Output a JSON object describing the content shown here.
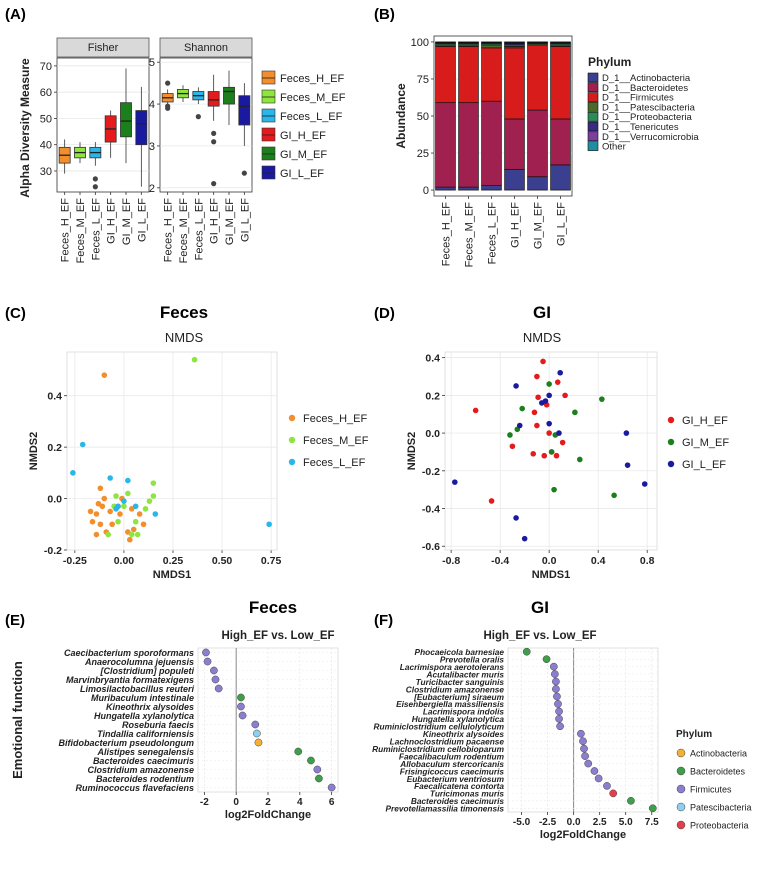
{
  "chart_data": [
    {
      "panel": "(A)",
      "type": "box",
      "ylabel": "Alpha Diversity Measure",
      "categories": [
        "Feces_H_EF",
        "Feces_M_EF",
        "Feces_L_EF",
        "GI_H_EF",
        "GI_M_EF",
        "GI_L_EF"
      ],
      "colors": [
        "#F28E2B",
        "#8EE53F",
        "#29B6E8",
        "#E41A1C",
        "#1B7F1B",
        "#1A1AA0"
      ],
      "facets": [
        {
          "title": "Fisher",
          "ylim": [
            22,
            73
          ],
          "yticks": [
            30,
            40,
            50,
            60,
            70
          ],
          "boxes": [
            {
              "min": 29,
              "q1": 33,
              "median": 36,
              "q3": 39,
              "max": 42,
              "outliers": []
            },
            {
              "min": 33,
              "q1": 35,
              "median": 37,
              "q3": 39,
              "max": 41,
              "outliers": []
            },
            {
              "min": 32,
              "q1": 35,
              "median": 37,
              "q3": 39,
              "max": 41,
              "outliers": [
                27,
                24
              ]
            },
            {
              "min": 35,
              "q1": 41,
              "median": 46,
              "q3": 51,
              "max": 53,
              "outliers": []
            },
            {
              "min": 33,
              "q1": 43,
              "median": 49,
              "q3": 56,
              "max": 69,
              "outliers": []
            },
            {
              "min": 24,
              "q1": 40,
              "median": 48,
              "q3": 53,
              "max": 62,
              "outliers": []
            }
          ]
        },
        {
          "title": "Shannon",
          "ylim": [
            1.9,
            5.1
          ],
          "yticks": [
            2,
            3,
            4,
            5
          ],
          "boxes": [
            {
              "min": 3.95,
              "q1": 4.05,
              "median": 4.15,
              "q3": 4.25,
              "max": 4.35,
              "outliers": [
                4.5,
                3.95,
                3.9
              ]
            },
            {
              "min": 4.05,
              "q1": 4.15,
              "median": 4.25,
              "q3": 4.35,
              "max": 4.45,
              "outliers": []
            },
            {
              "min": 4.0,
              "q1": 4.1,
              "median": 4.2,
              "q3": 4.3,
              "max": 4.4,
              "outliers": [
                3.7
              ]
            },
            {
              "min": 3.6,
              "q1": 3.95,
              "median": 4.1,
              "q3": 4.3,
              "max": 4.7,
              "outliers": [
                3.3,
                3.1,
                2.1
              ]
            },
            {
              "min": 3.5,
              "q1": 4.0,
              "median": 4.3,
              "q3": 4.4,
              "max": 4.8,
              "outliers": []
            },
            {
              "min": 3.0,
              "q1": 3.5,
              "median": 3.95,
              "q3": 4.2,
              "max": 4.5,
              "outliers": [
                2.35
              ]
            }
          ]
        }
      ]
    },
    {
      "panel": "(B)",
      "type": "stacked-bar",
      "ylabel": "Abundance",
      "ylim": [
        0,
        100
      ],
      "yticks": [
        0,
        25,
        50,
        75,
        100
      ],
      "categories": [
        "Feces_H_EF",
        "Feces_M_EF",
        "Feces_L_EF",
        "GI_H_EF",
        "GI_M_EF",
        "GI_L_EF"
      ],
      "legend_title": "Phylum",
      "series": [
        {
          "name": "D_1__Actinobacteria",
          "color": "#3A3F8F",
          "values": [
            2,
            2,
            3,
            14,
            9,
            17
          ]
        },
        {
          "name": "D_1__Bacteroidetes",
          "color": "#A02050",
          "values": [
            57,
            57,
            57,
            34,
            45,
            31
          ]
        },
        {
          "name": "D_1__Firmicutes",
          "color": "#D81B1B",
          "values": [
            38,
            38,
            36,
            48,
            44,
            49
          ]
        },
        {
          "name": "D_1__Patescibacteria",
          "color": "#4A6A2A",
          "values": [
            1,
            1,
            2,
            1,
            1,
            1
          ]
        },
        {
          "name": "D_1__Proteobacteria",
          "color": "#2E8B57",
          "values": [
            1,
            1,
            1,
            1,
            0.5,
            1
          ]
        },
        {
          "name": "D_1__Tenericutes",
          "color": "#3A2A80",
          "values": [
            0.5,
            0.5,
            0.5,
            1,
            0.3,
            0.5
          ]
        },
        {
          "name": "D_1__Verrucomicrobia",
          "color": "#7B3FA0",
          "values": [
            0.3,
            0.3,
            0.3,
            0.5,
            0.1,
            0.3
          ]
        },
        {
          "name": "Other",
          "color": "#1E8FA0",
          "values": [
            0.2,
            0.2,
            0.2,
            0.5,
            0.1,
            0.2
          ]
        }
      ]
    },
    {
      "panel": "(C)",
      "type": "scatter",
      "title": "Feces",
      "subtitle": "NMDS",
      "xlabel": "NMDS1",
      "ylabel": "NMDS2",
      "xlim": [
        -0.29,
        0.78
      ],
      "ylim": [
        -0.2,
        0.57
      ],
      "xticks": [
        -0.25,
        0,
        0.25,
        0.5,
        0.75
      ],
      "yticks": [
        -0.2,
        0.0,
        0.2,
        0.4
      ],
      "series": [
        {
          "name": "Feces_H_EF",
          "color": "#F28E2B",
          "points": [
            [
              -0.1,
              0.48
            ],
            [
              -0.12,
              0.04
            ],
            [
              -0.17,
              -0.05
            ],
            [
              -0.14,
              -0.06
            ],
            [
              -0.07,
              -0.05
            ],
            [
              -0.1,
              0.0
            ],
            [
              -0.02,
              -0.06
            ],
            [
              -0.13,
              -0.02
            ],
            [
              -0.16,
              -0.09
            ],
            [
              -0.12,
              -0.1
            ],
            [
              -0.01,
              0.0
            ],
            [
              0.04,
              -0.04
            ],
            [
              0.1,
              -0.1
            ],
            [
              -0.03,
              -0.03
            ],
            [
              0.02,
              -0.13
            ],
            [
              -0.09,
              -0.13
            ],
            [
              0.03,
              -0.16
            ],
            [
              -0.06,
              -0.1
            ],
            [
              -0.14,
              -0.14
            ],
            [
              0.08,
              -0.06
            ],
            [
              -0.11,
              -0.03
            ],
            [
              0.05,
              -0.12
            ]
          ]
        },
        {
          "name": "Feces_M_EF",
          "color": "#8EE53F",
          "points": [
            [
              0.36,
              0.54
            ],
            [
              0.15,
              0.06
            ],
            [
              0.15,
              0.01
            ],
            [
              0.13,
              -0.01
            ],
            [
              0.0,
              -0.03
            ],
            [
              0.06,
              -0.09
            ],
            [
              -0.03,
              -0.09
            ],
            [
              0.04,
              -0.14
            ],
            [
              0.07,
              -0.14
            ],
            [
              -0.08,
              -0.14
            ],
            [
              -0.04,
              0.01
            ],
            [
              0.11,
              -0.04
            ],
            [
              -0.05,
              -0.03
            ],
            [
              0.02,
              0.02
            ]
          ]
        },
        {
          "name": "Feces_L_EF",
          "color": "#29B6E8",
          "points": [
            [
              -0.21,
              0.21
            ],
            [
              -0.26,
              0.1
            ],
            [
              0.74,
              -0.1
            ],
            [
              -0.07,
              0.08
            ],
            [
              0.02,
              0.07
            ],
            [
              -0.04,
              -0.04
            ],
            [
              -0.03,
              -0.03
            ],
            [
              0.06,
              -0.03
            ],
            [
              0.16,
              -0.06
            ],
            [
              0.0,
              -0.01
            ]
          ]
        }
      ]
    },
    {
      "panel": "(D)",
      "type": "scatter",
      "title": "GI",
      "subtitle": "NMDS",
      "xlabel": "NMDS1",
      "ylabel": "NMDS2",
      "xlim": [
        -0.85,
        0.88
      ],
      "ylim": [
        -0.62,
        0.43
      ],
      "xticks": [
        -0.8,
        -0.4,
        0.0,
        0.4,
        0.8
      ],
      "yticks": [
        -0.6,
        -0.4,
        -0.2,
        0.0,
        0.2,
        0.4
      ],
      "series": [
        {
          "name": "GI_H_EF",
          "color": "#E41A1C",
          "points": [
            [
              -0.05,
              0.38
            ],
            [
              -0.1,
              0.3
            ],
            [
              0.07,
              0.27
            ],
            [
              0.13,
              0.2
            ],
            [
              -0.09,
              0.19
            ],
            [
              -0.02,
              0.15
            ],
            [
              -0.6,
              0.12
            ],
            [
              -0.12,
              0.11
            ],
            [
              -0.1,
              0.04
            ],
            [
              0.0,
              0.0
            ],
            [
              -0.3,
              -0.07
            ],
            [
              0.02,
              -0.1
            ],
            [
              -0.13,
              -0.11
            ],
            [
              -0.04,
              -0.12
            ],
            [
              0.06,
              -0.12
            ],
            [
              -0.47,
              -0.36
            ],
            [
              0.11,
              -0.05
            ]
          ]
        },
        {
          "name": "GI_M_EF",
          "color": "#1B7F1B",
          "points": [
            [
              0.0,
              0.26
            ],
            [
              0.43,
              0.18
            ],
            [
              -0.22,
              0.13
            ],
            [
              0.21,
              0.11
            ],
            [
              -0.26,
              0.02
            ],
            [
              -0.32,
              -0.01
            ],
            [
              0.05,
              -0.01
            ],
            [
              0.02,
              -0.1
            ],
            [
              0.25,
              -0.14
            ],
            [
              0.04,
              -0.3
            ],
            [
              0.53,
              -0.33
            ]
          ]
        },
        {
          "name": "GI_L_EF",
          "color": "#1A1AA0",
          "points": [
            [
              0.09,
              0.32
            ],
            [
              -0.27,
              0.25
            ],
            [
              0.0,
              0.2
            ],
            [
              -0.03,
              0.17
            ],
            [
              -0.06,
              0.16
            ],
            [
              0.0,
              0.05
            ],
            [
              0.08,
              0.0
            ],
            [
              -0.24,
              0.04
            ],
            [
              0.63,
              0.0
            ],
            [
              0.64,
              -0.17
            ],
            [
              0.78,
              -0.27
            ],
            [
              -0.77,
              -0.26
            ],
            [
              -0.27,
              -0.45
            ],
            [
              -0.2,
              -0.56
            ]
          ]
        }
      ]
    },
    {
      "panel": "(E)",
      "type": "dot",
      "title": "Feces",
      "subtitle": "High_EF vs. Low_EF",
      "xlabel": "log2FoldChange",
      "ylabel": "Emotional function",
      "xlim": [
        -2.4,
        6.4
      ],
      "xticks": [
        -2,
        0,
        2,
        4,
        6
      ],
      "items": [
        {
          "name": "Caecibacterium sporoformans",
          "value": -1.9,
          "phylum": "Firmicutes"
        },
        {
          "name": "Anaerocolumna jejuensis",
          "value": -1.8,
          "phylum": "Firmicutes"
        },
        {
          "name": "[Clostridium] populeti",
          "value": -1.4,
          "phylum": "Firmicutes"
        },
        {
          "name": "Marvinbryantia formatexigens",
          "value": -1.3,
          "phylum": "Firmicutes"
        },
        {
          "name": "Limosilactobacillus reuteri",
          "value": -1.1,
          "phylum": "Firmicutes"
        },
        {
          "name": "Muribaculum intestinale",
          "value": 0.3,
          "phylum": "Bacteroidetes"
        },
        {
          "name": "Kineothrix alysoides",
          "value": 0.3,
          "phylum": "Firmicutes"
        },
        {
          "name": "Hungatella xylanolytica",
          "value": 0.4,
          "phylum": "Firmicutes"
        },
        {
          "name": "Roseburia faecis",
          "value": 1.2,
          "phylum": "Firmicutes"
        },
        {
          "name": "Tindallia californiensis",
          "value": 1.3,
          "phylum": "Patescibacteria"
        },
        {
          "name": "Bifidobacterium pseudolongum",
          "value": 1.4,
          "phylum": "Actinobacteria"
        },
        {
          "name": "Alistipes senegalensis",
          "value": 3.9,
          "phylum": "Bacteroidetes"
        },
        {
          "name": "Bacteroides caecimuris",
          "value": 4.7,
          "phylum": "Bacteroidetes"
        },
        {
          "name": "Clostridium amazonense",
          "value": 5.1,
          "phylum": "Firmicutes"
        },
        {
          "name": "Bacteroides rodentium",
          "value": 5.2,
          "phylum": "Bacteroidetes"
        },
        {
          "name": "Ruminococcus flavefaciens",
          "value": 6.0,
          "phylum": "Firmicutes"
        }
      ]
    },
    {
      "panel": "(F)",
      "type": "dot",
      "title": "GI",
      "subtitle": "High_EF vs. Low_EF",
      "xlabel": "log2FoldChange",
      "xlim": [
        -6.3,
        8.1
      ],
      "xticks": [
        -5.0,
        -2.5,
        0.0,
        2.5,
        5.0,
        7.5
      ],
      "legend_title": "Phylum",
      "items": [
        {
          "name": "Phocaeicola barnesiae",
          "value": -4.5,
          "phylum": "Bacteroidetes"
        },
        {
          "name": "Prevotella oralis",
          "value": -2.6,
          "phylum": "Bacteroidetes"
        },
        {
          "name": "Lacrimispora aerotolerans",
          "value": -1.9,
          "phylum": "Firmicutes"
        },
        {
          "name": "Acutalibacter muris",
          "value": -1.8,
          "phylum": "Firmicutes"
        },
        {
          "name": "Turicibacter sanguinis",
          "value": -1.7,
          "phylum": "Firmicutes"
        },
        {
          "name": "Clostridium amazonense",
          "value": -1.7,
          "phylum": "Firmicutes"
        },
        {
          "name": "[Eubacterium] siraeum",
          "value": -1.6,
          "phylum": "Firmicutes"
        },
        {
          "name": "Eisenbergiella massiliensis",
          "value": -1.5,
          "phylum": "Firmicutes"
        },
        {
          "name": "Lacrimispora indolis",
          "value": -1.4,
          "phylum": "Firmicutes"
        },
        {
          "name": "Hungatella xylanolytica",
          "value": -1.4,
          "phylum": "Firmicutes"
        },
        {
          "name": "Ruminiclostridium cellulolyticum",
          "value": -1.3,
          "phylum": "Firmicutes"
        },
        {
          "name": "Kineothrix alysoides",
          "value": 0.7,
          "phylum": "Firmicutes"
        },
        {
          "name": "Lachnoclostridium pacaense",
          "value": 0.9,
          "phylum": "Firmicutes"
        },
        {
          "name": "Ruminiclostridium cellobioparum",
          "value": 1.0,
          "phylum": "Firmicutes"
        },
        {
          "name": "Faecalibaculum rodentium",
          "value": 1.1,
          "phylum": "Firmicutes"
        },
        {
          "name": "Allobaculum stercoricanis",
          "value": 1.4,
          "phylum": "Firmicutes"
        },
        {
          "name": "Frisingicoccus caecimuris",
          "value": 2.0,
          "phylum": "Firmicutes"
        },
        {
          "name": "Eubacterium ventriosum",
          "value": 2.4,
          "phylum": "Firmicutes"
        },
        {
          "name": "Faecalicatena contorta",
          "value": 3.2,
          "phylum": "Firmicutes"
        },
        {
          "name": "Turicimonas muris",
          "value": 3.8,
          "phylum": "Proteobacteria"
        },
        {
          "name": "Bacteroides caecimuris",
          "value": 5.5,
          "phylum": "Bacteroidetes"
        },
        {
          "name": "Prevotellamassilia timonensis",
          "value": 7.6,
          "phylum": "Bacteroidetes"
        }
      ]
    }
  ],
  "phylum_colors": {
    "Actinobacteria": "#F2B134",
    "Bacteroidetes": "#3E9E4A",
    "Firmicutes": "#8A7ECF",
    "Patescibacteria": "#8ECFEF",
    "Proteobacteria": "#E0404A"
  },
  "phylum_legend": [
    "Actinobacteria",
    "Bacteroidetes",
    "Firmicutes",
    "Patescibacteria",
    "Proteobacteria"
  ]
}
